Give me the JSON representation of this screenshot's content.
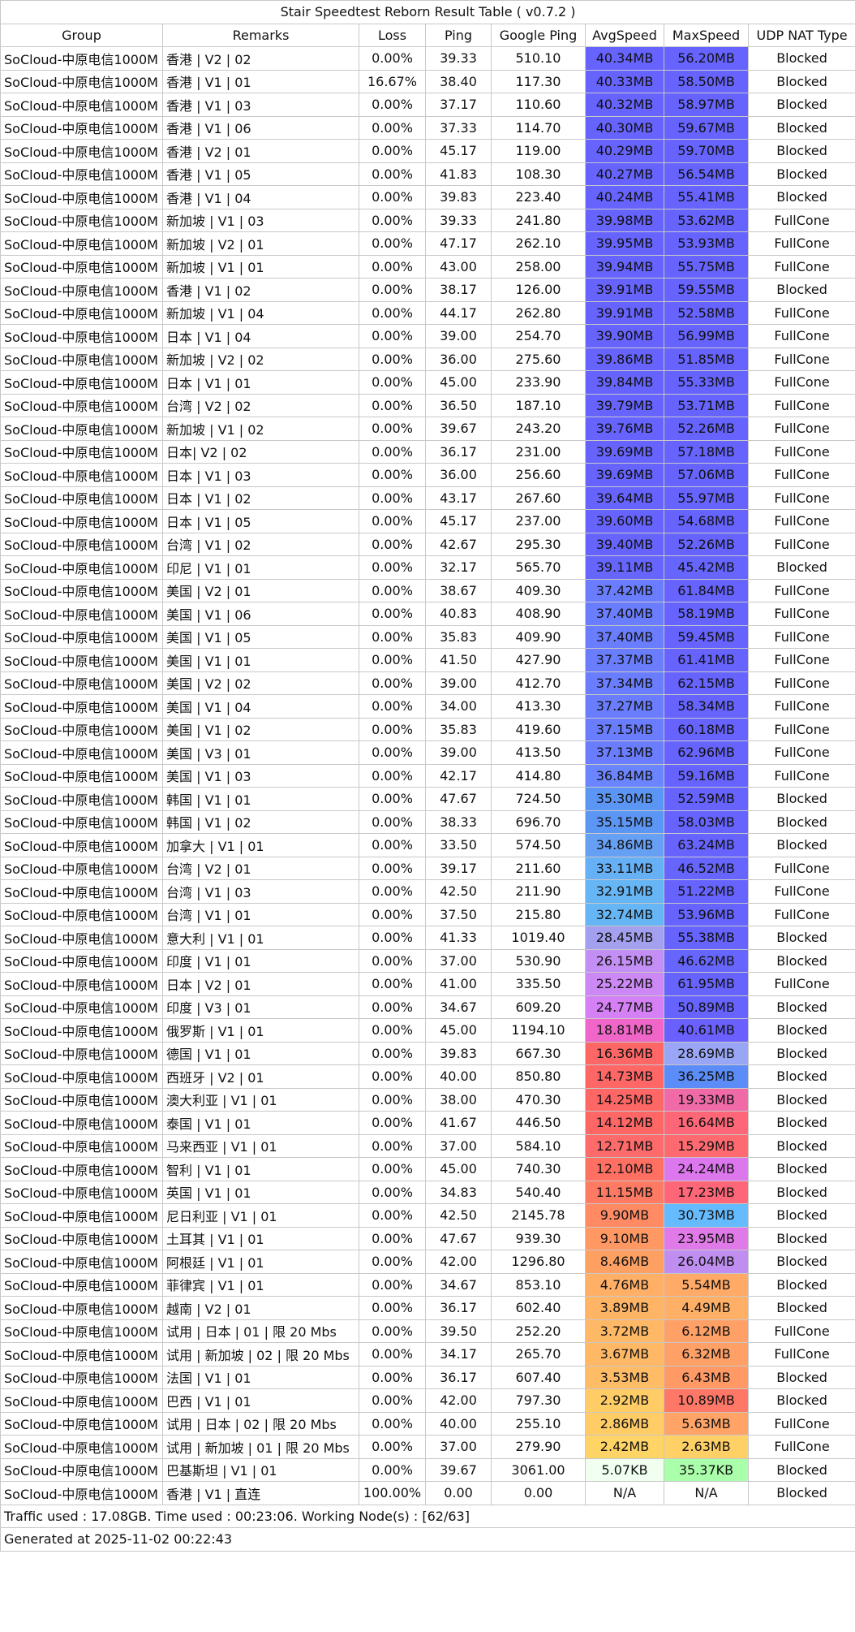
{
  "title": "Stair Speedtest Reborn Result Table ( v0.7.2 )",
  "columns": [
    "Group",
    "Remarks",
    "Loss",
    "Ping",
    "Google Ping",
    "AvgSpeed",
    "MaxSpeed",
    "UDP NAT Type"
  ],
  "rows": [
    [
      "SoCloud-中原电信1000M",
      "香港 | V2 | 02",
      "0.00%",
      "39.33",
      "510.10",
      "40.34MB",
      "56.20MB",
      "Blocked"
    ],
    [
      "SoCloud-中原电信1000M",
      "香港 | V1 | 01",
      "16.67%",
      "38.40",
      "117.30",
      "40.33MB",
      "58.50MB",
      "Blocked"
    ],
    [
      "SoCloud-中原电信1000M",
      "香港 | V1 | 03",
      "0.00%",
      "37.17",
      "110.60",
      "40.32MB",
      "58.97MB",
      "Blocked"
    ],
    [
      "SoCloud-中原电信1000M",
      "香港 | V1 | 06",
      "0.00%",
      "37.33",
      "114.70",
      "40.30MB",
      "59.67MB",
      "Blocked"
    ],
    [
      "SoCloud-中原电信1000M",
      "香港 | V2 | 01",
      "0.00%",
      "45.17",
      "119.00",
      "40.29MB",
      "59.70MB",
      "Blocked"
    ],
    [
      "SoCloud-中原电信1000M",
      "香港 | V1 | 05",
      "0.00%",
      "41.83",
      "108.30",
      "40.27MB",
      "56.54MB",
      "Blocked"
    ],
    [
      "SoCloud-中原电信1000M",
      "香港 | V1 | 04",
      "0.00%",
      "39.83",
      "223.40",
      "40.24MB",
      "55.41MB",
      "Blocked"
    ],
    [
      "SoCloud-中原电信1000M",
      "新加坡 | V1 | 03",
      "0.00%",
      "39.33",
      "241.80",
      "39.98MB",
      "53.62MB",
      "FullCone"
    ],
    [
      "SoCloud-中原电信1000M",
      "新加坡 | V2 | 01",
      "0.00%",
      "47.17",
      "262.10",
      "39.95MB",
      "53.93MB",
      "FullCone"
    ],
    [
      "SoCloud-中原电信1000M",
      "新加坡 | V1 | 01",
      "0.00%",
      "43.00",
      "258.00",
      "39.94MB",
      "55.75MB",
      "FullCone"
    ],
    [
      "SoCloud-中原电信1000M",
      "香港 | V1 | 02",
      "0.00%",
      "38.17",
      "126.00",
      "39.91MB",
      "59.55MB",
      "Blocked"
    ],
    [
      "SoCloud-中原电信1000M",
      "新加坡 | V1 | 04",
      "0.00%",
      "44.17",
      "262.80",
      "39.91MB",
      "52.58MB",
      "FullCone"
    ],
    [
      "SoCloud-中原电信1000M",
      "日本 | V1 | 04",
      "0.00%",
      "39.00",
      "254.70",
      "39.90MB",
      "56.99MB",
      "FullCone"
    ],
    [
      "SoCloud-中原电信1000M",
      "新加坡 | V2 | 02",
      "0.00%",
      "36.00",
      "275.60",
      "39.86MB",
      "51.85MB",
      "FullCone"
    ],
    [
      "SoCloud-中原电信1000M",
      "日本 | V1 | 01",
      "0.00%",
      "45.00",
      "233.90",
      "39.84MB",
      "55.33MB",
      "FullCone"
    ],
    [
      "SoCloud-中原电信1000M",
      "台湾 | V2 | 02",
      "0.00%",
      "36.50",
      "187.10",
      "39.79MB",
      "53.71MB",
      "FullCone"
    ],
    [
      "SoCloud-中原电信1000M",
      "新加坡 | V1 | 02",
      "0.00%",
      "39.67",
      "243.20",
      "39.76MB",
      "52.26MB",
      "FullCone"
    ],
    [
      "SoCloud-中原电信1000M",
      "日本| V2 | 02",
      "0.00%",
      "36.17",
      "231.00",
      "39.69MB",
      "57.18MB",
      "FullCone"
    ],
    [
      "SoCloud-中原电信1000M",
      "日本 | V1 | 03",
      "0.00%",
      "36.00",
      "256.60",
      "39.69MB",
      "57.06MB",
      "FullCone"
    ],
    [
      "SoCloud-中原电信1000M",
      "日本 | V1 | 02",
      "0.00%",
      "43.17",
      "267.60",
      "39.64MB",
      "55.97MB",
      "FullCone"
    ],
    [
      "SoCloud-中原电信1000M",
      "日本 | V1 | 05",
      "0.00%",
      "45.17",
      "237.00",
      "39.60MB",
      "54.68MB",
      "FullCone"
    ],
    [
      "SoCloud-中原电信1000M",
      "台湾 | V1 | 02",
      "0.00%",
      "42.67",
      "295.30",
      "39.40MB",
      "52.26MB",
      "FullCone"
    ],
    [
      "SoCloud-中原电信1000M",
      "印尼  | V1 | 01",
      "0.00%",
      "32.17",
      "565.70",
      "39.11MB",
      "45.42MB",
      "Blocked"
    ],
    [
      "SoCloud-中原电信1000M",
      "美国 | V2 | 01",
      "0.00%",
      "38.67",
      "409.30",
      "37.42MB",
      "61.84MB",
      "FullCone"
    ],
    [
      "SoCloud-中原电信1000M",
      "美国 | V1 | 06",
      "0.00%",
      "40.83",
      "408.90",
      "37.40MB",
      "58.19MB",
      "FullCone"
    ],
    [
      "SoCloud-中原电信1000M",
      "美国 | V1 | 05",
      "0.00%",
      "35.83",
      "409.90",
      "37.40MB",
      "59.45MB",
      "FullCone"
    ],
    [
      "SoCloud-中原电信1000M",
      "美国 | V1 | 01",
      "0.00%",
      "41.50",
      "427.90",
      "37.37MB",
      "61.41MB",
      "FullCone"
    ],
    [
      "SoCloud-中原电信1000M",
      "美国 | V2 | 02",
      "0.00%",
      "39.00",
      "412.70",
      "37.34MB",
      "62.15MB",
      "FullCone"
    ],
    [
      "SoCloud-中原电信1000M",
      "美国 | V1 | 04",
      "0.00%",
      "34.00",
      "413.30",
      "37.27MB",
      "58.34MB",
      "FullCone"
    ],
    [
      "SoCloud-中原电信1000M",
      "美国 | V1 | 02",
      "0.00%",
      "35.83",
      "419.60",
      "37.15MB",
      "60.18MB",
      "FullCone"
    ],
    [
      "SoCloud-中原电信1000M",
      "美国 | V3 | 01",
      "0.00%",
      "39.00",
      "413.50",
      "37.13MB",
      "62.96MB",
      "FullCone"
    ],
    [
      "SoCloud-中原电信1000M",
      "美国 | V1 | 03",
      "0.00%",
      "42.17",
      "414.80",
      "36.84MB",
      "59.16MB",
      "FullCone"
    ],
    [
      "SoCloud-中原电信1000M",
      "韩国 | V1 | 01",
      "0.00%",
      "47.67",
      "724.50",
      "35.30MB",
      "52.59MB",
      "Blocked"
    ],
    [
      "SoCloud-中原电信1000M",
      "韩国 | V1 | 02",
      "0.00%",
      "38.33",
      "696.70",
      "35.15MB",
      "58.03MB",
      "Blocked"
    ],
    [
      "SoCloud-中原电信1000M",
      "加拿大 | V1 | 01",
      "0.00%",
      "33.50",
      "574.50",
      "34.86MB",
      "63.24MB",
      "Blocked"
    ],
    [
      "SoCloud-中原电信1000M",
      "台湾 | V2 | 01",
      "0.00%",
      "39.17",
      "211.60",
      "33.11MB",
      "46.52MB",
      "FullCone"
    ],
    [
      "SoCloud-中原电信1000M",
      "台湾 | V1 | 03",
      "0.00%",
      "42.50",
      "211.90",
      "32.91MB",
      "51.22MB",
      "FullCone"
    ],
    [
      "SoCloud-中原电信1000M",
      "台湾 | V1 | 01",
      "0.00%",
      "37.50",
      "215.80",
      "32.74MB",
      "53.96MB",
      "FullCone"
    ],
    [
      "SoCloud-中原电信1000M",
      "意大利 | V1 | 01",
      "0.00%",
      "41.33",
      "1019.40",
      "28.45MB",
      "55.38MB",
      "Blocked"
    ],
    [
      "SoCloud-中原电信1000M",
      "印度 | V1 | 01",
      "0.00%",
      "37.00",
      "530.90",
      "26.15MB",
      "46.62MB",
      "Blocked"
    ],
    [
      "SoCloud-中原电信1000M",
      "日本 | V2 | 01",
      "0.00%",
      "41.00",
      "335.50",
      "25.22MB",
      "61.95MB",
      "FullCone"
    ],
    [
      "SoCloud-中原电信1000M",
      "印度 | V3 | 01",
      "0.00%",
      "34.67",
      "609.20",
      "24.77MB",
      "50.89MB",
      "Blocked"
    ],
    [
      "SoCloud-中原电信1000M",
      "俄罗斯 | V1 | 01",
      "0.00%",
      "45.00",
      "1194.10",
      "18.81MB",
      "40.61MB",
      "Blocked"
    ],
    [
      "SoCloud-中原电信1000M",
      "德国 | V1 | 01",
      "0.00%",
      "39.83",
      "667.30",
      "16.36MB",
      "28.69MB",
      "Blocked"
    ],
    [
      "SoCloud-中原电信1000M",
      "西班牙  | V2 | 01",
      "0.00%",
      "40.00",
      "850.80",
      "14.73MB",
      "36.25MB",
      "Blocked"
    ],
    [
      "SoCloud-中原电信1000M",
      "澳大利亚 | V1 | 01",
      "0.00%",
      "38.00",
      "470.30",
      "14.25MB",
      "19.33MB",
      "Blocked"
    ],
    [
      "SoCloud-中原电信1000M",
      "泰国 | V1 | 01",
      "0.00%",
      "41.67",
      "446.50",
      "14.12MB",
      "16.64MB",
      "Blocked"
    ],
    [
      "SoCloud-中原电信1000M",
      "马来西亚 | V1 | 01",
      "0.00%",
      "37.00",
      "584.10",
      "12.71MB",
      "15.29MB",
      "Blocked"
    ],
    [
      "SoCloud-中原电信1000M",
      "智利  | V1 | 01",
      "0.00%",
      "45.00",
      "740.30",
      "12.10MB",
      "24.24MB",
      "Blocked"
    ],
    [
      "SoCloud-中原电信1000M",
      "英国 | V1 | 01",
      "0.00%",
      "34.83",
      "540.40",
      "11.15MB",
      "17.23MB",
      "Blocked"
    ],
    [
      "SoCloud-中原电信1000M",
      "尼日利亚 | V1 | 01",
      "0.00%",
      "42.50",
      "2145.78",
      "9.90MB",
      "30.73MB",
      "Blocked"
    ],
    [
      "SoCloud-中原电信1000M",
      "土耳其 | V1 | 01",
      "0.00%",
      "47.67",
      "939.30",
      "9.10MB",
      "23.95MB",
      "Blocked"
    ],
    [
      "SoCloud-中原电信1000M",
      "阿根廷 | V1 | 01",
      "0.00%",
      "42.00",
      "1296.80",
      "8.46MB",
      "26.04MB",
      "Blocked"
    ],
    [
      "SoCloud-中原电信1000M",
      "菲律宾 | V1 | 01",
      "0.00%",
      "34.67",
      "853.10",
      "4.76MB",
      "5.54MB",
      "Blocked"
    ],
    [
      "SoCloud-中原电信1000M",
      "越南 | V2 | 01",
      "0.00%",
      "36.17",
      "602.40",
      "3.89MB",
      "4.49MB",
      "Blocked"
    ],
    [
      "SoCloud-中原电信1000M",
      "试用 | 日本 | 01 | 限 20 Mbs",
      "0.00%",
      "39.50",
      "252.20",
      "3.72MB",
      "6.12MB",
      "FullCone"
    ],
    [
      "SoCloud-中原电信1000M",
      "试用 | 新加坡 | 02 | 限 20 Mbs",
      "0.00%",
      "34.17",
      "265.70",
      "3.67MB",
      "6.32MB",
      "FullCone"
    ],
    [
      "SoCloud-中原电信1000M",
      "法国 | V1 | 01",
      "0.00%",
      "36.17",
      "607.40",
      "3.53MB",
      "6.43MB",
      "Blocked"
    ],
    [
      "SoCloud-中原电信1000M",
      "巴西 | V1 | 01",
      "0.00%",
      "42.00",
      "797.30",
      "2.92MB",
      "10.89MB",
      "Blocked"
    ],
    [
      "SoCloud-中原电信1000M",
      "试用 | 日本 | 02 | 限 20 Mbs",
      "0.00%",
      "40.00",
      "255.10",
      "2.86MB",
      "5.63MB",
      "FullCone"
    ],
    [
      "SoCloud-中原电信1000M",
      "试用 | 新加坡 | 01 | 限 20 Mbs",
      "0.00%",
      "37.00",
      "279.90",
      "2.42MB",
      "2.63MB",
      "FullCone"
    ],
    [
      "SoCloud-中原电信1000M",
      "巴基斯坦 | V1 | 01",
      "0.00%",
      "39.67",
      "3061.00",
      "5.07KB",
      "35.37KB",
      "Blocked"
    ],
    [
      "SoCloud-中原电信1000M",
      "香港 | V1 | 直连",
      "100.00%",
      "0.00",
      "0.00",
      "N/A",
      "N/A",
      "Blocked"
    ]
  ],
  "cell_colors": [
    [
      "#6663ff",
      "#6663ff"
    ],
    [
      "#6663ff",
      "#6663ff"
    ],
    [
      "#6663ff",
      "#6663ff"
    ],
    [
      "#6663ff",
      "#6663ff"
    ],
    [
      "#6663ff",
      "#6663ff"
    ],
    [
      "#6663ff",
      "#6663ff"
    ],
    [
      "#6663ff",
      "#6663ff"
    ],
    [
      "#6663ff",
      "#6663ff"
    ],
    [
      "#6663ff",
      "#6663ff"
    ],
    [
      "#6663ff",
      "#6663ff"
    ],
    [
      "#6663ff",
      "#6663ff"
    ],
    [
      "#6663ff",
      "#6663ff"
    ],
    [
      "#6663ff",
      "#6663ff"
    ],
    [
      "#6663ff",
      "#6663ff"
    ],
    [
      "#6663ff",
      "#6663ff"
    ],
    [
      "#6663ff",
      "#6663ff"
    ],
    [
      "#6663ff",
      "#6663ff"
    ],
    [
      "#6663ff",
      "#6663ff"
    ],
    [
      "#6663ff",
      "#6663ff"
    ],
    [
      "#6663ff",
      "#6663ff"
    ],
    [
      "#6663ff",
      "#6663ff"
    ],
    [
      "#6663ff",
      "#6663ff"
    ],
    [
      "#6666ff",
      "#6666ff"
    ],
    [
      "#6a7dff",
      "#6663ff"
    ],
    [
      "#6a7dff",
      "#6663ff"
    ],
    [
      "#6a7dff",
      "#6663ff"
    ],
    [
      "#6a7dff",
      "#6663ff"
    ],
    [
      "#6a7dff",
      "#6663ff"
    ],
    [
      "#6a7dff",
      "#6663ff"
    ],
    [
      "#6a7dff",
      "#6663ff"
    ],
    [
      "#6a7dff",
      "#6663ff"
    ],
    [
      "#6a85ff",
      "#6663ff"
    ],
    [
      "#5b96f5",
      "#6663ff"
    ],
    [
      "#5b96f5",
      "#6663ff"
    ],
    [
      "#66a0f5",
      "#6663ff"
    ],
    [
      "#66b0f5",
      "#6666ff"
    ],
    [
      "#66b5f5",
      "#6663ff"
    ],
    [
      "#66b5f5",
      "#6663ff"
    ],
    [
      "#a3a0f0",
      "#6663ff"
    ],
    [
      "#c48ff5",
      "#6666ff"
    ],
    [
      "#cc88f5",
      "#6663ff"
    ],
    [
      "#d580f5",
      "#6663ff"
    ],
    [
      "#ef66c8",
      "#6a60ff"
    ],
    [
      "#ff6666",
      "#99a6f5"
    ],
    [
      "#ff6666",
      "#5b8cf8"
    ],
    [
      "#ff6666",
      "#f06aa8"
    ],
    [
      "#ff6666",
      "#ff6677"
    ],
    [
      "#ff6a6a",
      "#ff6a70"
    ],
    [
      "#ff7063",
      "#dd77ee"
    ],
    [
      "#ff7a63",
      "#ff6677"
    ],
    [
      "#ff8a63",
      "#66bbff"
    ],
    [
      "#ff9863",
      "#e07ae8"
    ],
    [
      "#ffa063",
      "#c08ef0"
    ],
    [
      "#ffb066",
      "#ffaa66"
    ],
    [
      "#ffb466",
      "#ffb066"
    ],
    [
      "#ffb866",
      "#ffa066"
    ],
    [
      "#ffb866",
      "#ffa066"
    ],
    [
      "#ffbc66",
      "#ff9a66"
    ],
    [
      "#ffcc66",
      "#ff7766"
    ],
    [
      "#ffcc66",
      "#ffa466"
    ],
    [
      "#ffd466",
      "#ffd066"
    ],
    [
      "#f0fff0",
      "#aaffaa"
    ],
    [
      "#ffffff",
      "#ffffff"
    ]
  ],
  "footer": [
    "Traffic used : 17.08GB. Time used : 00:23:06. Working Node(s) : [62/63]",
    "Generated at 2025-11-02 00:22:43"
  ]
}
